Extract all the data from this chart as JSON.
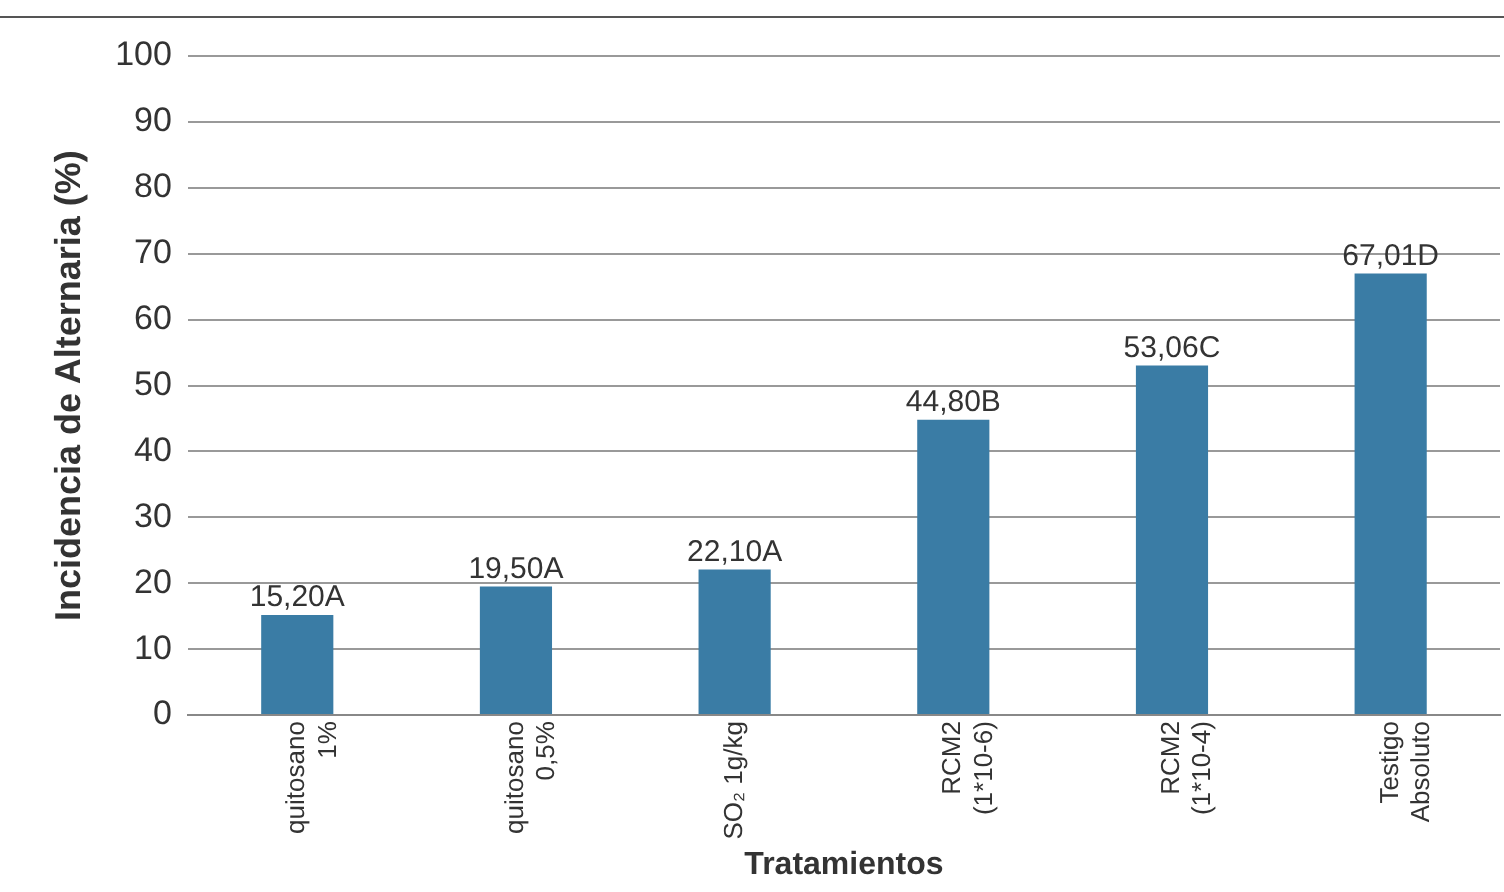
{
  "chart_data": {
    "type": "bar",
    "xlabel": "Tratamientos",
    "ylabel": "Incidencia de Alternaria (%)",
    "categories": [
      "quitosano\n1%",
      "quitosano\n0,5%",
      "SO₂ 1g/kg",
      "RCM2\n(1*10-6)",
      "RCM2\n(1*10-4)",
      "Testigo\nAbsoluto"
    ],
    "values": [
      15.2,
      19.5,
      22.1,
      44.8,
      53.06,
      67.01
    ],
    "value_labels": [
      "15,20A",
      "19,50A",
      "22,10A",
      "44,80B",
      "53,06C",
      "67,01D"
    ],
    "color": "#3a7ca5",
    "ylim": [
      0,
      100
    ],
    "yticks": [
      0,
      10,
      20,
      30,
      40,
      50,
      60,
      70,
      80,
      90,
      100
    ],
    "grid": "y",
    "legend": false
  }
}
